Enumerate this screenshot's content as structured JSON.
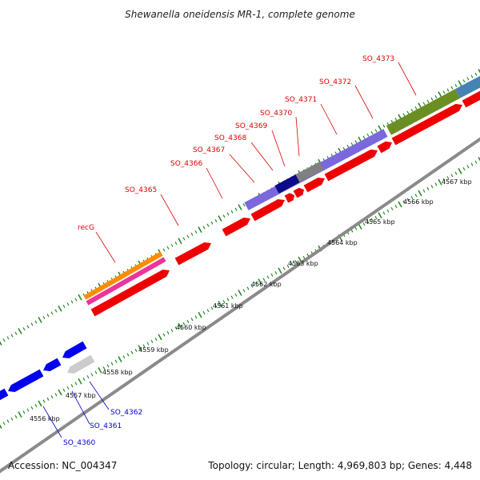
{
  "title": "Shewanella oneidensis MR-1, complete genome",
  "footer": {
    "accession": "Accession: NC_004347",
    "summary": "Topology: circular; Length: 4,969,803 bp; Genes: 4,448"
  },
  "scale_labels": [
    "4556 kbp",
    "4557 kbp",
    "4558 kbp",
    "4559 kbp",
    "4560 kbp",
    "4561 kbp",
    "4562 kbp",
    "4563 kbp",
    "4564 kbp",
    "4565 kbp",
    "4566 kbp",
    "4567 kbp"
  ],
  "gene_labels_forward": [
    "recG",
    "SO_4365",
    "SO_4366",
    "SO_4367",
    "SO_4368",
    "SO_4369",
    "SO_4370",
    "SO_4371",
    "SO_4372",
    "SO_4373"
  ],
  "gene_labels_reverse": [
    "SO_4360",
    "SO_4361",
    "SO_4362"
  ],
  "colors": {
    "forward_label": "#dd0000",
    "reverse_label": "#0000cc",
    "forward_gene": "#ee0000",
    "reverse_gene": "#0000ee",
    "tick_green": "#2a8a2a",
    "backbone": "#888888",
    "orange": "#ff8c00",
    "magenta": "#ee3399",
    "slateblue": "#7b68dd",
    "navy": "#000088",
    "gray": "#808080",
    "olive": "#6b8e23",
    "steelblue": "#4682b4",
    "lightgray": "#cccccc"
  }
}
